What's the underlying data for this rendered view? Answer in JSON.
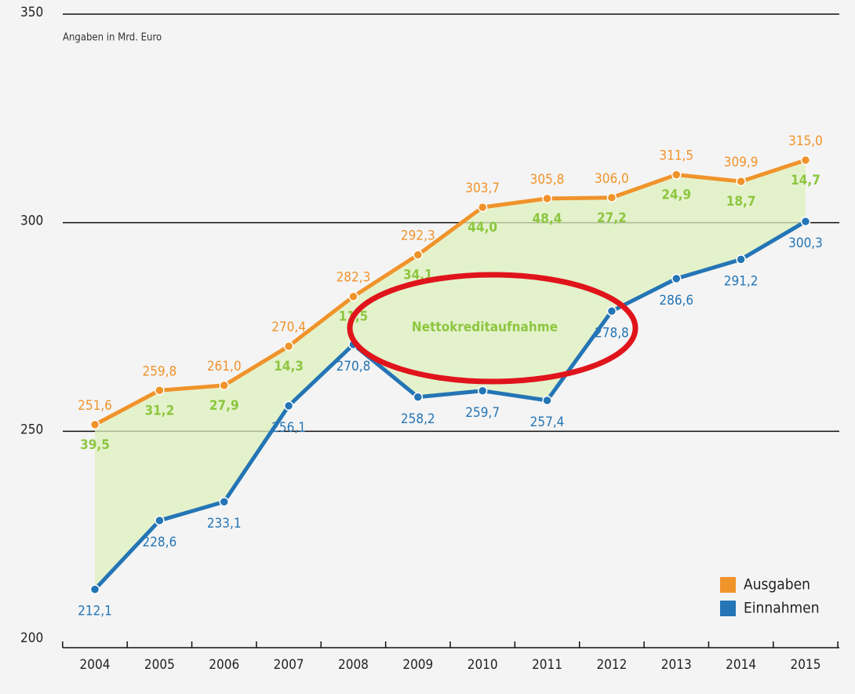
{
  "chart_data": {
    "type": "line",
    "subtitle": "Angaben in Mrd. Euro",
    "annotations": [
      "Nettokreditaufnahme"
    ],
    "categories": [
      "2004",
      "2005",
      "2006",
      "2007",
      "2008",
      "2009",
      "2010",
      "2011",
      "2012",
      "2013",
      "2014",
      "2015"
    ],
    "series": [
      {
        "name": "Ausgaben",
        "color": "#f0932b",
        "values": [
          251.6,
          259.8,
          261.0,
          270.4,
          282.3,
          292.3,
          303.7,
          305.8,
          306.0,
          311.5,
          309.9,
          315.0
        ],
        "value_labels": [
          "251,6",
          "259,8",
          "261,0",
          "270,4",
          "282,3",
          "292,3",
          "303,7",
          "305,8",
          "306,0",
          "311,5",
          "309,9",
          "315,0"
        ]
      },
      {
        "name": "Einnahmen",
        "color": "#2475b5",
        "values": [
          212.1,
          228.6,
          233.1,
          256.1,
          270.8,
          258.2,
          259.7,
          257.4,
          278.8,
          286.6,
          291.2,
          300.3
        ],
        "value_labels": [
          "212,1",
          "228,6",
          "233,1",
          "256,1",
          "270,8",
          "258,2",
          "259,7",
          "257,4",
          "278,8",
          "286,6",
          "291,2",
          "300,3"
        ]
      }
    ],
    "net_credit": {
      "color": "#8dc63f",
      "values": [
        39.5,
        31.2,
        27.9,
        14.3,
        11.5,
        34.1,
        44.0,
        48.4,
        27.2,
        24.9,
        18.7,
        14.7
      ],
      "value_labels": [
        "39,5",
        "31,2",
        "27,9",
        "14,3",
        "11,5",
        "34,1",
        "44,0",
        "48,4",
        "27,2",
        "24,9",
        "18,7",
        "14,7"
      ]
    },
    "ylim": [
      200,
      350
    ],
    "yticks": [
      200,
      250,
      300,
      350
    ],
    "grid": true,
    "legend": "lower right"
  }
}
